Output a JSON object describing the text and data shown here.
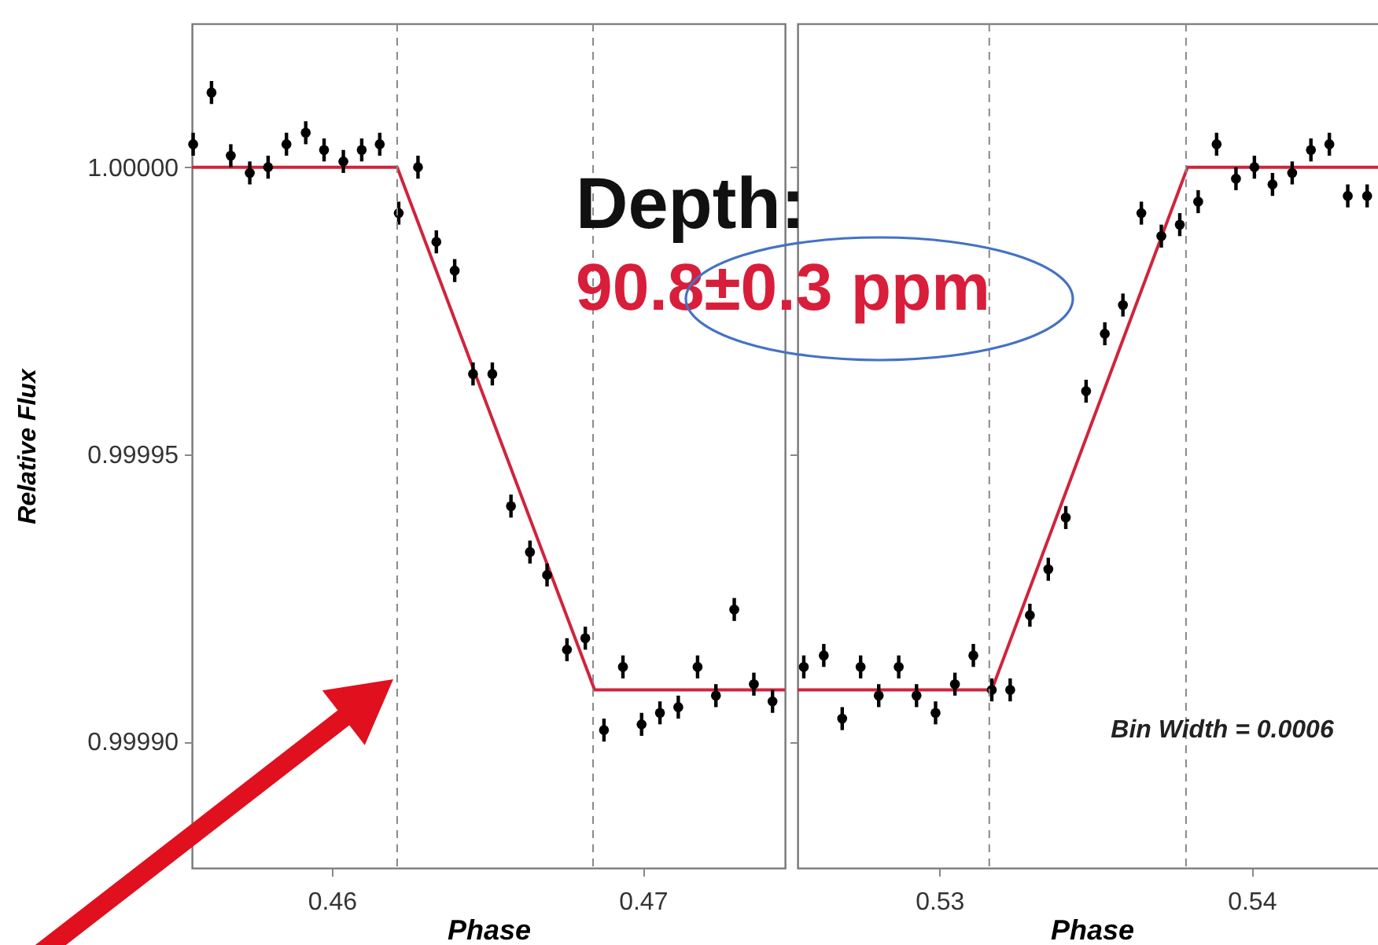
{
  "chart_data": [
    {
      "type": "scatter",
      "xlabel": "Phase",
      "ylabel": "Relative Flux",
      "xlim": [
        0.4555,
        0.47457
      ],
      "xticks": [
        0.46,
        0.47
      ],
      "ylim": [
        0.999878,
        1.000025
      ],
      "yticks": [
        {
          "value": 1,
          "label": "1.00000"
        },
        0.99995,
        {
          "value": 0.9999,
          "label": "0.99990"
        }
      ],
      "grid": false,
      "series": [
        {
          "type": "line",
          "color": "#d0243c",
          "x": [
            0.4555,
            0.4621,
            0.46845,
            0.47457
          ],
          "values": [
            1,
            1,
            0.999909,
            0.999909
          ]
        },
        {
          "type": "scatter",
          "marker": "circle",
          "color": "#000000",
          "x": [
            0.45554,
            0.45613,
            0.45675,
            0.45736,
            0.45795,
            0.45854,
            0.45916,
            0.45975,
            0.46037,
            0.46096,
            0.46154,
            0.46215,
            0.46277,
            0.46336,
            0.46395,
            0.46454,
            0.46516,
            0.46576,
            0.46637,
            0.46692,
            0.46756,
            0.46815,
            0.46875,
            0.46936,
            0.46996,
            0.47055,
            0.47114,
            0.47176,
            0.47235,
            0.47294,
            0.47357,
            0.47417
          ],
          "values": [
            1.000004,
            1.000013,
            1.000002,
            0.999999,
            1.0,
            1.000004,
            1.000006,
            1.000003,
            1.000001,
            1.000003,
            1.000004,
            0.999992,
            1.0,
            0.999987,
            0.999982,
            0.999964,
            0.999964,
            0.999941,
            0.999933,
            0.999929,
            0.999916,
            0.999918,
            0.999902,
            0.999913,
            0.999903,
            0.999905,
            0.999906,
            0.999913,
            0.999908,
            0.999923,
            0.99991,
            0.999907
          ],
          "errors": [
            2e-06,
            2e-06,
            2e-06,
            2e-06,
            2e-06,
            2e-06,
            2e-06,
            2e-06,
            2e-06,
            2e-06,
            2e-06,
            2e-06,
            2e-06,
            2e-06,
            2e-06,
            2e-06,
            2e-06,
            2e-06,
            2e-06,
            2e-06,
            2e-06,
            2e-06,
            2e-06,
            2e-06,
            2e-06,
            2e-06,
            2e-06,
            2e-06,
            2e-06,
            2e-06,
            2e-06,
            2e-06
          ]
        }
      ],
      "ref_lines": [
        {
          "axis": "x",
          "value": 0.4621,
          "color": "#888888",
          "line_style": "dashed"
        },
        {
          "axis": "x",
          "value": 0.4684,
          "color": "#888888",
          "line_style": "dashed"
        }
      ],
      "annotations": [
        "Depth:",
        "90.8±0.3 ppm"
      ]
    },
    {
      "type": "scatter",
      "xlabel": "Phase",
      "xlim": [
        0.52546,
        0.5443
      ],
      "xticks": [
        0.53,
        0.54
      ],
      "ylim": [
        0.999878,
        1.000025
      ],
      "yticks": [
        1,
        0.99995,
        0.9999
      ],
      "tick_labels": "x",
      "grid": false,
      "series": [
        {
          "type": "line",
          "color": "#d0243c",
          "x": [
            0.52546,
            0.53168,
            0.53795,
            0.5443
          ],
          "values": [
            0.999909,
            0.999909,
            1,
            1
          ]
        },
        {
          "type": "scatter",
          "marker": "circle",
          "color": "#000000",
          "x": [
            0.52566,
            0.5263,
            0.52689,
            0.52748,
            0.52806,
            0.5287,
            0.52927,
            0.52988,
            0.5305,
            0.53109,
            0.53168,
            0.53227,
            0.5329,
            0.53349,
            0.53405,
            0.5347,
            0.5353,
            0.53588,
            0.53647,
            0.53711,
            0.5377,
            0.53829,
            0.53888,
            0.5395,
            0.54009,
            0.54067,
            0.5413,
            0.5419,
            0.54249,
            0.54308,
            0.5437
          ],
          "values": [
            0.999913,
            0.999915,
            0.999904,
            0.999913,
            0.999908,
            0.999913,
            0.999908,
            0.999905,
            0.99991,
            0.999915,
            0.999909,
            0.999909,
            0.999922,
            0.99993,
            0.999939,
            0.999961,
            0.999971,
            0.999976,
            0.999992,
            0.999988,
            0.99999,
            0.999994,
            1.000004,
            0.999998,
            1.0,
            0.999997,
            0.999999,
            1.000003,
            1.000004,
            0.999995,
            0.999995
          ],
          "errors": [
            2e-06,
            2e-06,
            2e-06,
            2e-06,
            2e-06,
            2e-06,
            2e-06,
            2e-06,
            2e-06,
            2e-06,
            2e-06,
            2e-06,
            2e-06,
            2e-06,
            2e-06,
            2e-06,
            2e-06,
            2e-06,
            2e-06,
            2e-06,
            2e-06,
            2e-06,
            2e-06,
            2e-06,
            2e-06,
            2e-06,
            2e-06,
            2e-06,
            2e-06,
            2e-06,
            2e-06
          ]
        }
      ],
      "ref_lines": [
        {
          "axis": "x",
          "value": 0.5316,
          "color": "#888888",
          "line_style": "dashed"
        },
        {
          "axis": "x",
          "value": 0.5379,
          "color": "#888888",
          "line_style": "dashed"
        }
      ],
      "annotations": [
        "Bin Width = 0.0006"
      ]
    }
  ]
}
